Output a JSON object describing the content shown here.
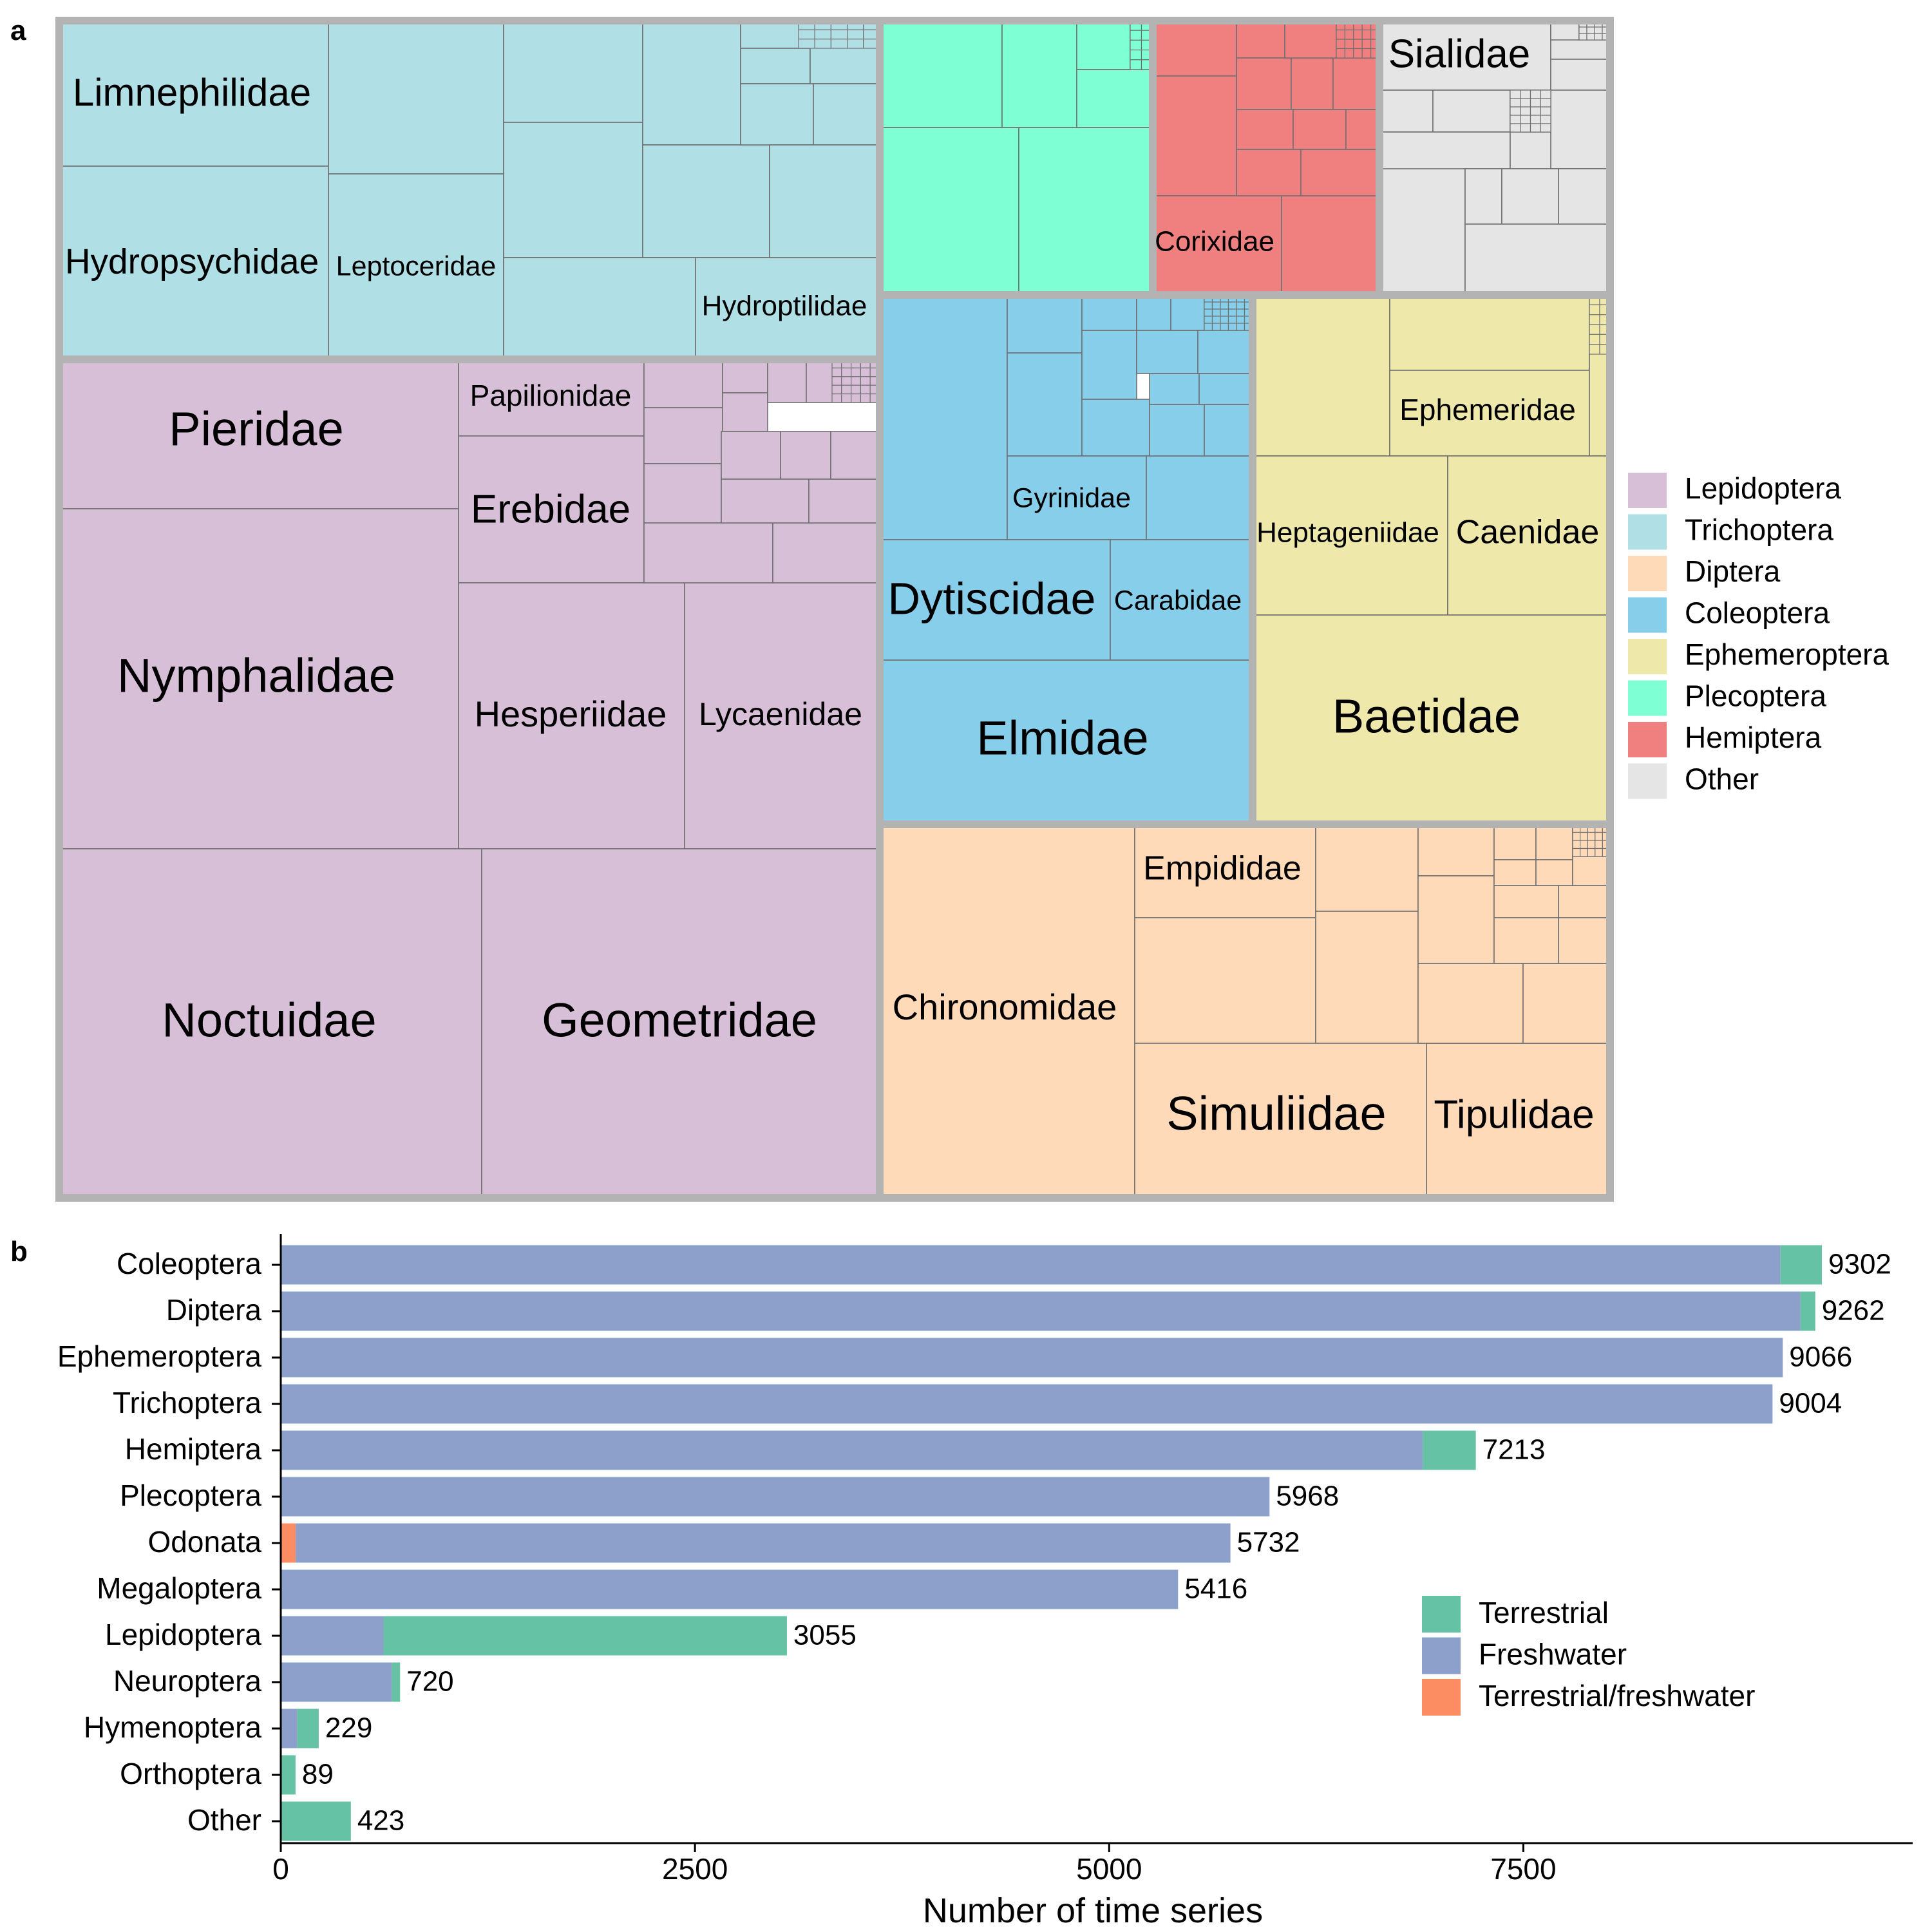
{
  "panel_a": {
    "label": "a",
    "chart_data": {
      "type": "treemap",
      "title": "",
      "legend_position": "right",
      "groups": [
        {
          "name": "Lepidoptera",
          "color": "#d8bfd8"
        },
        {
          "name": "Trichoptera",
          "color": "#b0e0e6"
        },
        {
          "name": "Diptera",
          "color": "#ffdab9"
        },
        {
          "name": "Coleoptera",
          "color": "#87ceeb"
        },
        {
          "name": "Ephemeroptera",
          "color": "#eee8aa"
        },
        {
          "name": "Plecoptera",
          "color": "#7fffd4"
        },
        {
          "name": "Hemiptera",
          "color": "#f08080"
        },
        {
          "name": "Other",
          "color": "#e5e5e5"
        }
      ],
      "labelled_families": [
        {
          "group": "Trichoptera",
          "name": "Limnephilidae"
        },
        {
          "group": "Trichoptera",
          "name": "Hydropsychidae"
        },
        {
          "group": "Trichoptera",
          "name": "Leptoceridae"
        },
        {
          "group": "Trichoptera",
          "name": "Hydroptilidae"
        },
        {
          "group": "Lepidoptera",
          "name": "Pieridae"
        },
        {
          "group": "Lepidoptera",
          "name": "Papilionidae"
        },
        {
          "group": "Lepidoptera",
          "name": "Erebidae"
        },
        {
          "group": "Lepidoptera",
          "name": "Nymphalidae"
        },
        {
          "group": "Lepidoptera",
          "name": "Hesperiidae"
        },
        {
          "group": "Lepidoptera",
          "name": "Lycaenidae"
        },
        {
          "group": "Lepidoptera",
          "name": "Noctuidae"
        },
        {
          "group": "Lepidoptera",
          "name": "Geometridae"
        },
        {
          "group": "Hemiptera",
          "name": "Corixidae"
        },
        {
          "group": "Other",
          "name": "Sialidae"
        },
        {
          "group": "Coleoptera",
          "name": "Gyrinidae"
        },
        {
          "group": "Coleoptera",
          "name": "Dytiscidae"
        },
        {
          "group": "Coleoptera",
          "name": "Carabidae"
        },
        {
          "group": "Coleoptera",
          "name": "Elmidae"
        },
        {
          "group": "Ephemeroptera",
          "name": "Ephemeridae"
        },
        {
          "group": "Ephemeroptera",
          "name": "Heptageniidae"
        },
        {
          "group": "Ephemeroptera",
          "name": "Caenidae"
        },
        {
          "group": "Ephemeroptera",
          "name": "Baetidae"
        },
        {
          "group": "Diptera",
          "name": "Empididae"
        },
        {
          "group": "Diptera",
          "name": "Chironomidae"
        },
        {
          "group": "Diptera",
          "name": "Simuliidae"
        },
        {
          "group": "Diptera",
          "name": "Tipulidae"
        }
      ]
    }
  },
  "panel_b": {
    "label": "b",
    "chart_data": {
      "type": "bar",
      "orientation": "horizontal",
      "stacked": true,
      "xlabel": "Number of time series",
      "ylabel": "",
      "xlim": [
        0,
        9850
      ],
      "xticks": [
        0,
        2500,
        5000,
        7500
      ],
      "legend_position": "bottom-right (inside)",
      "categories": [
        "Coleoptera",
        "Diptera",
        "Ephemeroptera",
        "Trichoptera",
        "Hemiptera",
        "Plecoptera",
        "Odonata",
        "Megaloptera",
        "Lepidoptera",
        "Neuroptera",
        "Hymenoptera",
        "Orthoptera",
        "Other"
      ],
      "totals": [
        9302,
        9262,
        9066,
        9004,
        7213,
        5968,
        5732,
        5416,
        3055,
        720,
        229,
        89,
        423
      ],
      "series": [
        {
          "name": "Terrestrial/freshwater",
          "color": "#fc8d62",
          "values": [
            0,
            0,
            0,
            0,
            0,
            0,
            90,
            0,
            0,
            0,
            0,
            0,
            0
          ]
        },
        {
          "name": "Freshwater",
          "color": "#8da0cb",
          "values": [
            9052,
            9172,
            9066,
            9004,
            6893,
            5968,
            5642,
            5416,
            620,
            670,
            100,
            0,
            0
          ]
        },
        {
          "name": "Terrestrial",
          "color": "#66c2a5",
          "values": [
            250,
            90,
            0,
            0,
            320,
            0,
            0,
            0,
            2435,
            50,
            129,
            89,
            423
          ]
        }
      ],
      "legend_order": [
        "Terrestrial",
        "Freshwater",
        "Terrestrial/freshwater"
      ]
    }
  }
}
